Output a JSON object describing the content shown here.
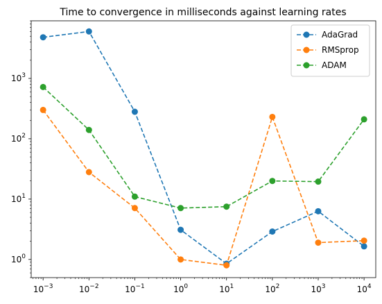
{
  "chart_data": {
    "type": "line",
    "title": "Time to convergence in milliseconds against learning rates",
    "xlabel": "",
    "ylabel": "",
    "xscale": "log",
    "yscale": "log",
    "x": [
      0.001,
      0.01,
      0.1,
      1,
      10,
      100,
      1000,
      10000
    ],
    "x_tick_labels": [
      {
        "base": "10",
        "exp": "−3"
      },
      {
        "base": "10",
        "exp": "−2"
      },
      {
        "base": "10",
        "exp": "−1"
      },
      {
        "base": "10",
        "exp": "0"
      },
      {
        "base": "10",
        "exp": "1"
      },
      {
        "base": "10",
        "exp": "2"
      },
      {
        "base": "10",
        "exp": "3"
      },
      {
        "base": "10",
        "exp": "4"
      }
    ],
    "y_tick_values": [
      1,
      10,
      100,
      1000
    ],
    "y_tick_labels": [
      {
        "base": "10",
        "exp": "0"
      },
      {
        "base": "10",
        "exp": "1"
      },
      {
        "base": "10",
        "exp": "2"
      },
      {
        "base": "10",
        "exp": "3"
      }
    ],
    "xlim": [
      0.00055,
      18000
    ],
    "ylim": [
      0.5,
      9000
    ],
    "grid": false,
    "legend_position": "top-right",
    "series": [
      {
        "name": "AdaGrad",
        "color": "#1f77b4",
        "values": [
          4800,
          6000,
          280,
          3.1,
          0.85,
          2.9,
          6.3,
          1.65
        ]
      },
      {
        "name": "RMSprop",
        "color": "#ff7f0e",
        "values": [
          300,
          28,
          7.1,
          1.0,
          0.8,
          230,
          1.9,
          2.05
        ]
      },
      {
        "name": "ADAM",
        "color": "#2ca02c",
        "values": [
          720,
          140,
          11,
          7.1,
          7.5,
          20,
          19.5,
          210
        ]
      }
    ]
  }
}
